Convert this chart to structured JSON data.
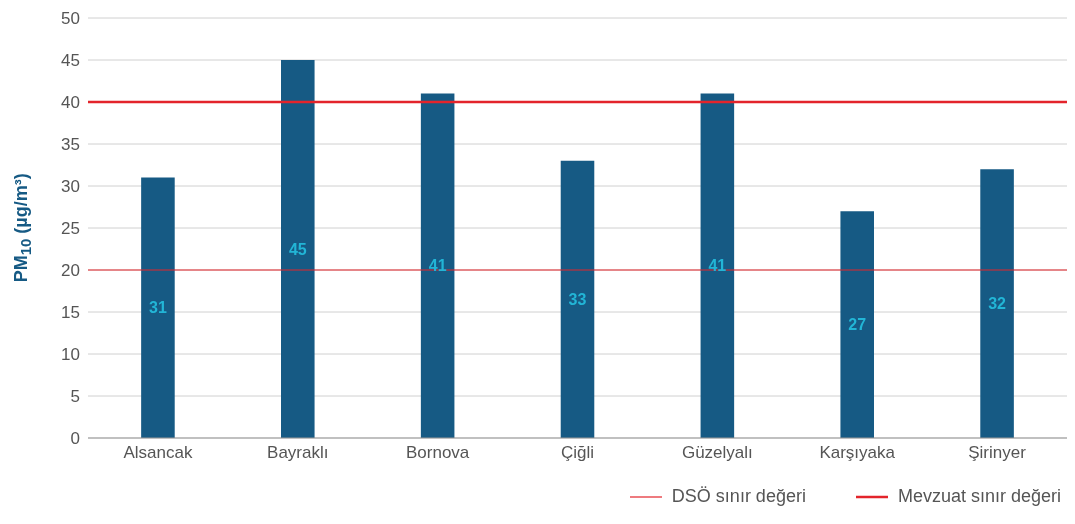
{
  "chart_data": {
    "type": "bar",
    "ylabel": "PM$_{10}$ (µg/m³)",
    "categories": [
      "Alsancak",
      "Bayraklı",
      "Bornova",
      "Çiğli",
      "Güzelyalı",
      "Karşıyaka",
      "Şirinyer"
    ],
    "values": [
      31,
      45,
      41,
      33,
      41,
      27,
      32
    ],
    "color": "#165a84",
    "data_labels": true,
    "ylim": [
      0,
      50
    ],
    "yticks": [
      0,
      5,
      10,
      15,
      20,
      25,
      30,
      35,
      40,
      45,
      50
    ],
    "grid": "y",
    "ref_lines": [
      {
        "axis": "y",
        "value": 20,
        "label": "DSÖ sınır değeri",
        "color": "#e3242b"
      },
      {
        "axis": "y",
        "value": 40,
        "label": "Mevzuat sınır değeri",
        "color": "#e3242b"
      }
    ],
    "legend": "bottom right"
  }
}
